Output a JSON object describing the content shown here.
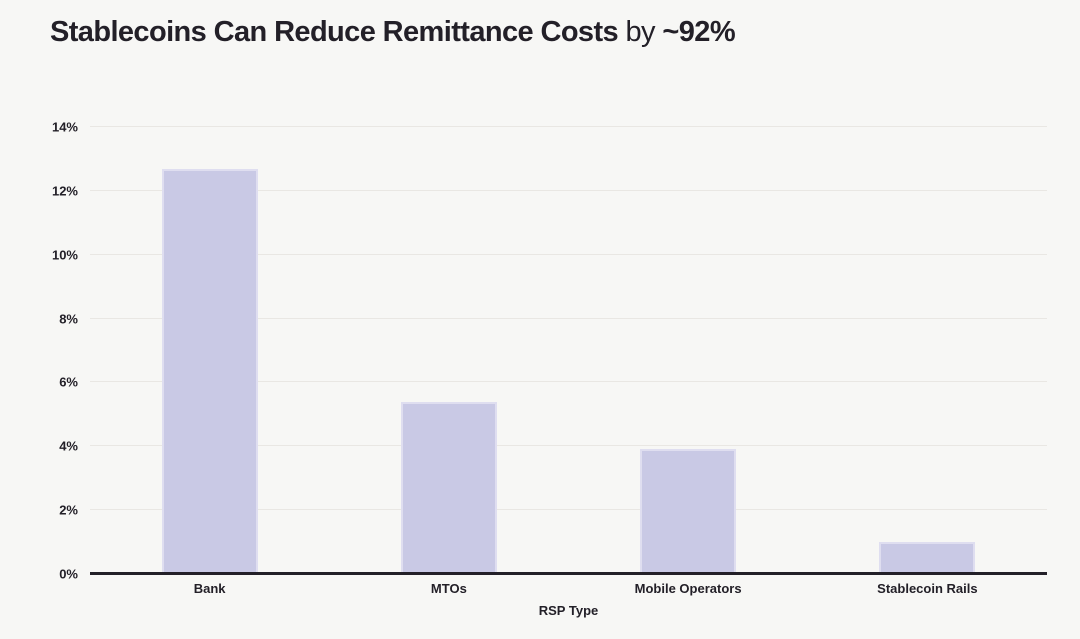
{
  "page": {
    "background": "#f7f7f5",
    "text_color": "#232028"
  },
  "title": {
    "bold_part": "Stablecoins Can Reduce Remittance Costs",
    "regular_part": "by",
    "bold_suffix": "~92%"
  },
  "chart_data": {
    "type": "bar",
    "title": "Stablecoins Can Reduce Remittance Costs by ~92%",
    "categories": [
      "Bank",
      "MTOs",
      "Mobile Operators",
      "Stablecoin Rails"
    ],
    "values": [
      12.7,
      5.4,
      3.9,
      1.0
    ],
    "unit": "%",
    "xlabel": "RSP Type",
    "ylabel": "",
    "ylim": [
      0,
      14
    ],
    "ytick_step": 2,
    "ytick_labels": [
      "0%",
      "2%",
      "4%",
      "6%",
      "8%",
      "10%",
      "12%",
      "14%"
    ],
    "grid": true,
    "legend": false,
    "bar_color": "#c9c9e5",
    "bar_border_color": "#dfdef0",
    "axis_color": "#232028",
    "grid_color": "#e9e7e3"
  }
}
